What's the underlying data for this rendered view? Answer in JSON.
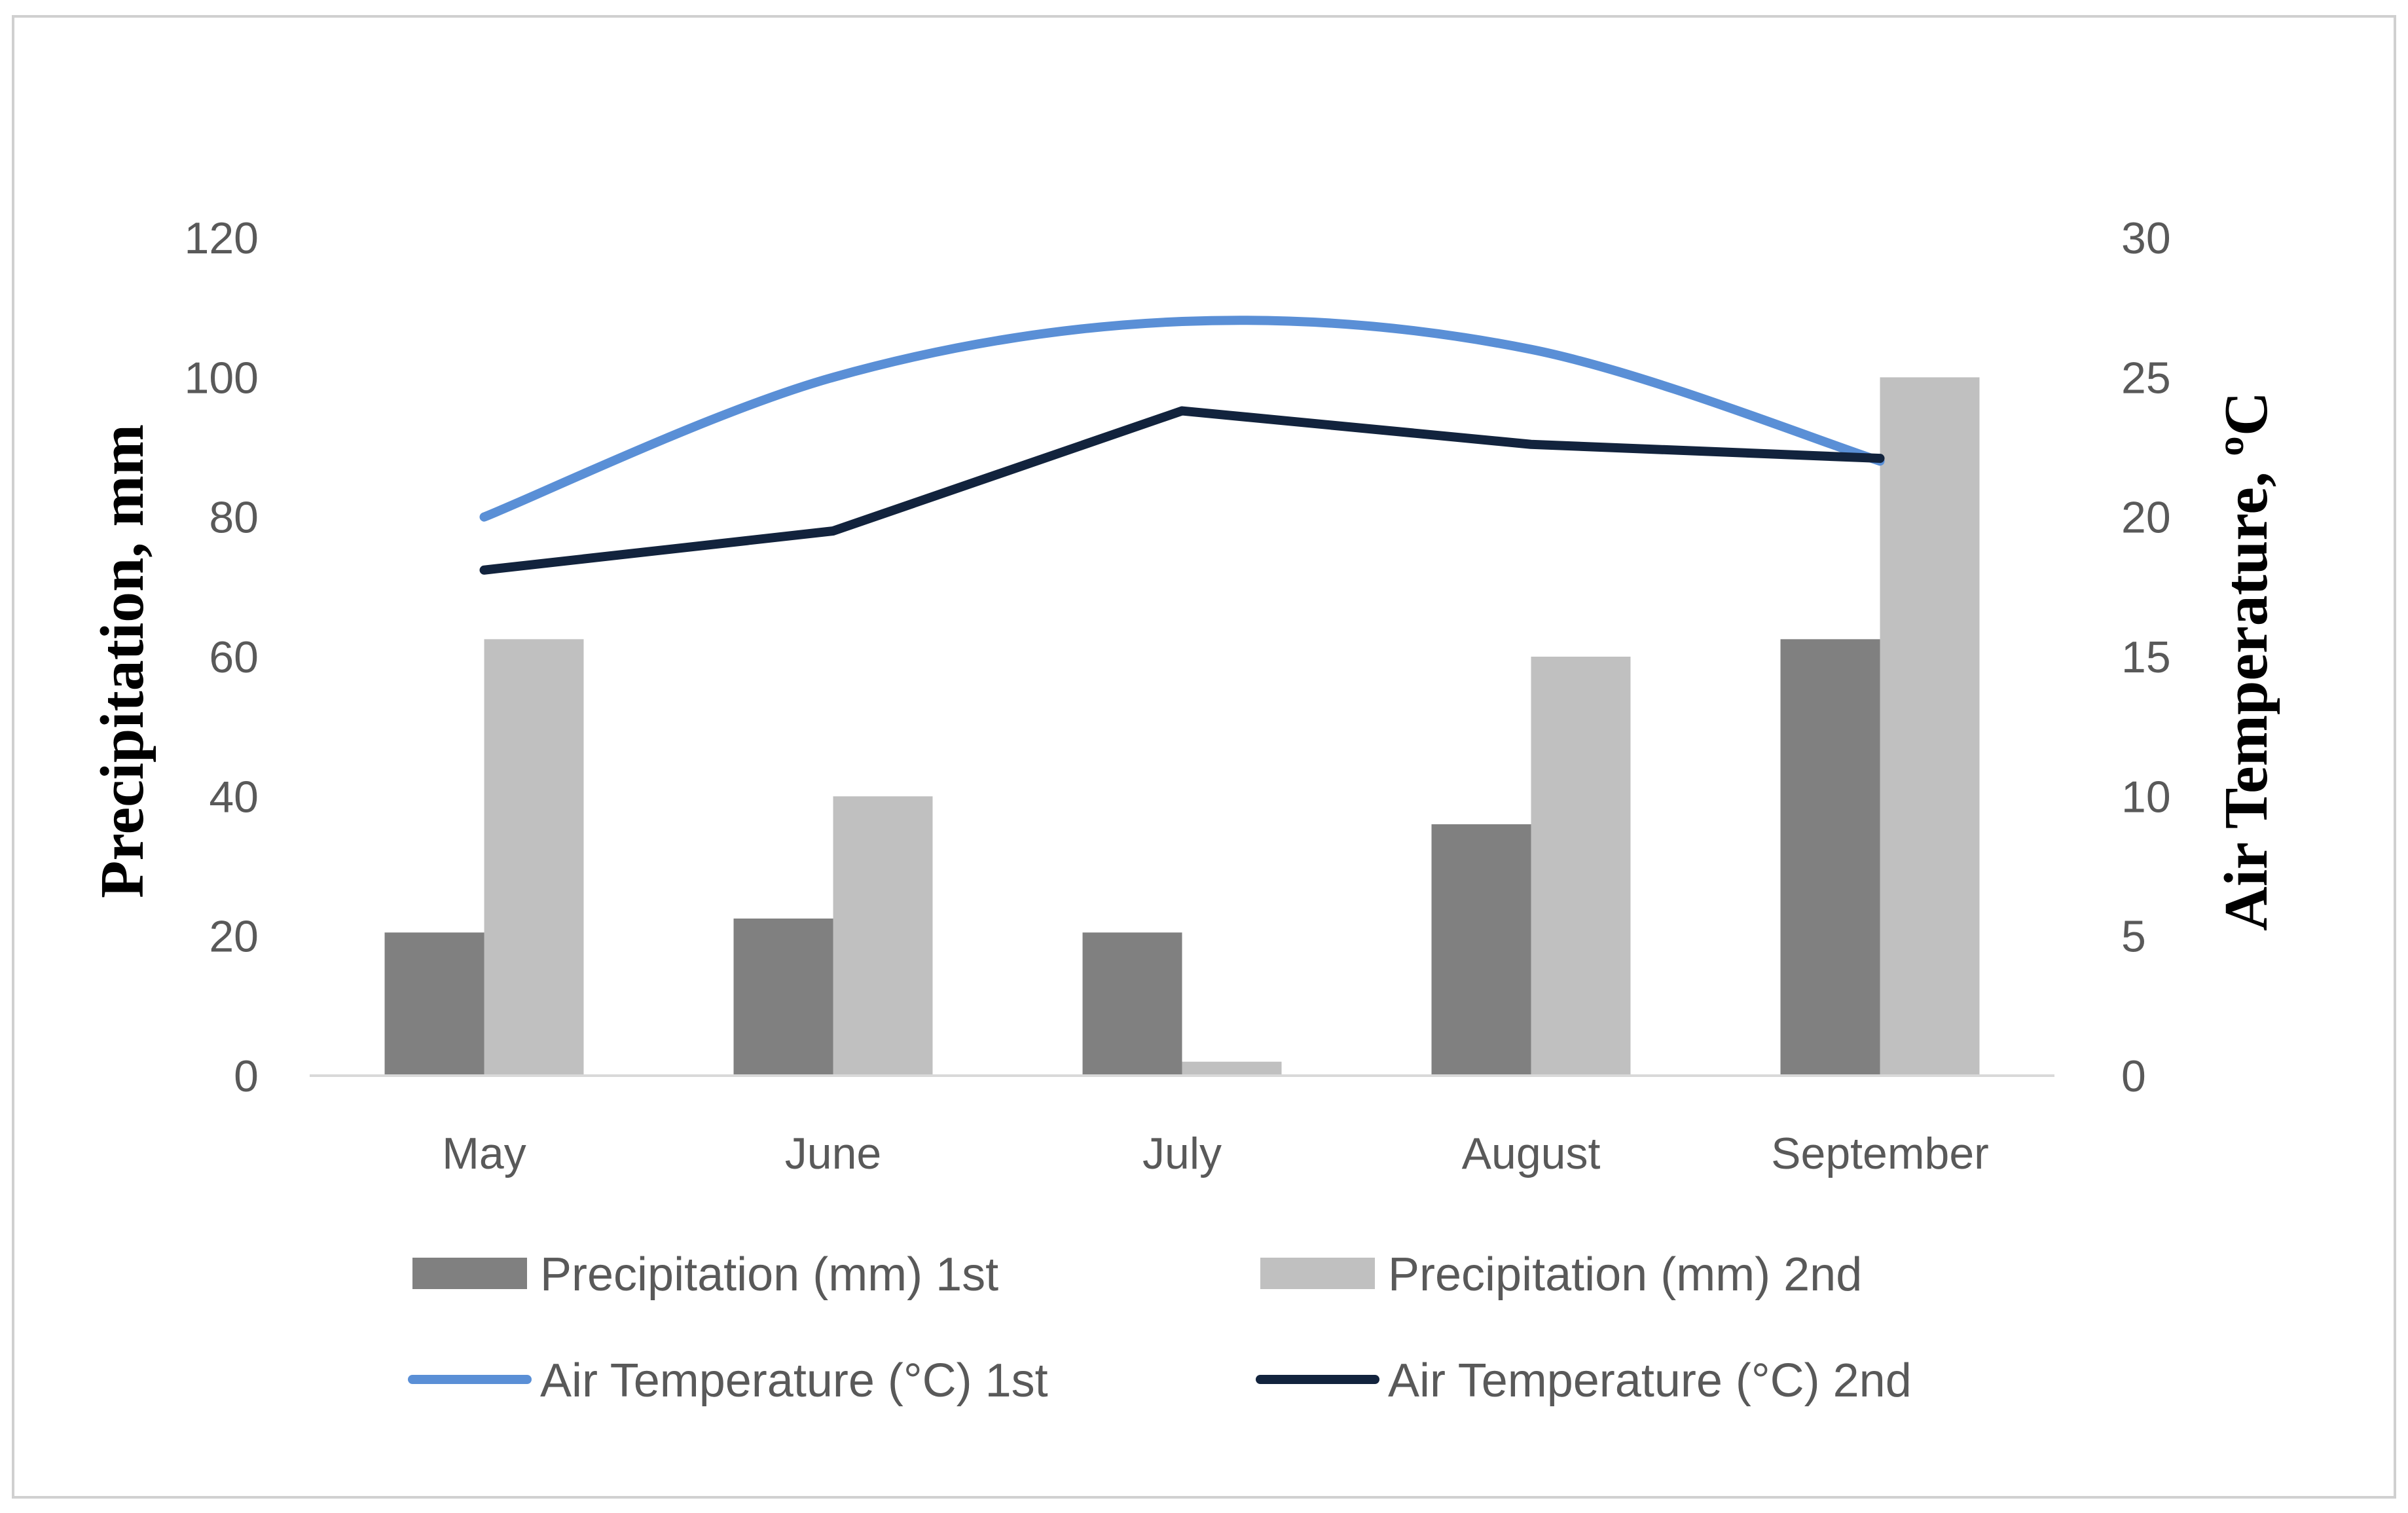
{
  "chart_data": {
    "type": "bar",
    "categories": [
      "May",
      "June",
      "July",
      "August",
      "September"
    ],
    "series": [
      {
        "name": "Precipitation (mm) 1st",
        "kind": "bar",
        "axis": "left",
        "color": "#808080",
        "values": [
          20.5,
          22.5,
          20.5,
          36,
          62.5
        ]
      },
      {
        "name": "Precipitation (mm) 2nd",
        "kind": "bar",
        "axis": "left",
        "color": "#c0c0c0",
        "values": [
          62.5,
          40,
          2,
          60,
          100
        ]
      },
      {
        "name": "Air Temperature (°C) 1st",
        "kind": "line",
        "axis": "right",
        "color": "#5a8fd6",
        "smooth": true,
        "values": [
          20,
          25,
          27,
          26,
          22
        ]
      },
      {
        "name": "Air Temperature (°C) 2nd",
        "kind": "line",
        "axis": "right",
        "color": "#12233d",
        "smooth": false,
        "values": [
          18.1,
          19.5,
          23.8,
          22.6,
          22.1
        ]
      }
    ],
    "ylabel": "Precipitation, mm",
    "y2label": "Air Temperature, ºC",
    "ylim": [
      0,
      120
    ],
    "y2lim": [
      0,
      30
    ],
    "yticks": [
      "0",
      "20",
      "40",
      "60",
      "80",
      "100",
      "120"
    ],
    "y2ticks": [
      "0",
      "5",
      "10",
      "15",
      "20",
      "25",
      "30"
    ],
    "grid": false,
    "legend_position": "bottom"
  }
}
